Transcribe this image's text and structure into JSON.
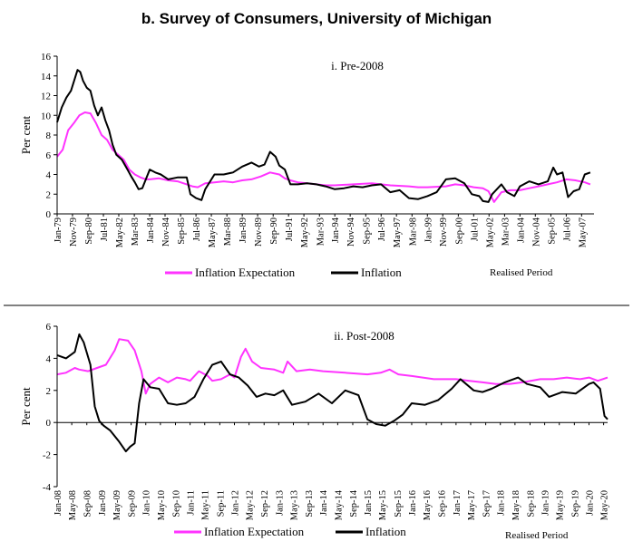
{
  "figure_title": "b.  Survey of Consumers, University of Michigan",
  "colors": {
    "expectation": "#ff33ff",
    "inflation": "#000000",
    "axis": "#000000"
  },
  "chart_data": [
    {
      "type": "line",
      "title": "i. Pre-2008",
      "xlabel": "Realised Period",
      "ylabel": "Per cent",
      "ylim": [
        0,
        16
      ],
      "yticks": [
        0,
        2,
        4,
        6,
        8,
        10,
        12,
        14,
        16
      ],
      "xlim": [
        1979.0,
        2008.0
      ],
      "x_ticks": [
        {
          "label": "Jan-79",
          "x": 1979.0
        },
        {
          "label": "Nov-79",
          "x": 1979.83
        },
        {
          "label": "Sep-80",
          "x": 1980.67
        },
        {
          "label": "Jul-81",
          "x": 1981.5
        },
        {
          "label": "May-82",
          "x": 1982.33
        },
        {
          "label": "Mar-83",
          "x": 1983.17
        },
        {
          "label": "Jan-84",
          "x": 1984.0
        },
        {
          "label": "Nov-84",
          "x": 1984.83
        },
        {
          "label": "Sep-85",
          "x": 1985.67
        },
        {
          "label": "Jul-86",
          "x": 1986.5
        },
        {
          "label": "May-87",
          "x": 1987.33
        },
        {
          "label": "Mar-88",
          "x": 1988.17
        },
        {
          "label": "Jan-89",
          "x": 1989.0
        },
        {
          "label": "Nov-89",
          "x": 1989.83
        },
        {
          "label": "Sep-90",
          "x": 1990.67
        },
        {
          "label": "Jul-91",
          "x": 1991.5
        },
        {
          "label": "May-92",
          "x": 1992.33
        },
        {
          "label": "Mar-93",
          "x": 1993.17
        },
        {
          "label": "Jan-94",
          "x": 1994.0
        },
        {
          "label": "Nov-94",
          "x": 1994.83
        },
        {
          "label": "Sep-95",
          "x": 1995.67
        },
        {
          "label": "Jul-96",
          "x": 1996.5
        },
        {
          "label": "May-97",
          "x": 1997.33
        },
        {
          "label": "Mar-98",
          "x": 1998.17
        },
        {
          "label": "Jan-99",
          "x": 1999.0
        },
        {
          "label": "Nov-99",
          "x": 1999.83
        },
        {
          "label": "Sep-00",
          "x": 2000.67
        },
        {
          "label": "Jul-01",
          "x": 2001.5
        },
        {
          "label": "May-02",
          "x": 2002.33
        },
        {
          "label": "Mar-03",
          "x": 2003.17
        },
        {
          "label": "Jan-04",
          "x": 2004.0
        },
        {
          "label": "Nov-04",
          "x": 2004.83
        },
        {
          "label": "Sep-05",
          "x": 2005.67
        },
        {
          "label": "Jul-06",
          "x": 2006.5
        },
        {
          "label": "May-07",
          "x": 2007.33
        }
      ],
      "series": [
        {
          "name": "Inflation Expectation",
          "color": "#ff33ff",
          "x": [
            1979.0,
            1979.3,
            1979.6,
            1979.9,
            1980.2,
            1980.5,
            1980.8,
            1981.1,
            1981.4,
            1981.7,
            1982.0,
            1982.3,
            1982.6,
            1982.9,
            1983.2,
            1983.5,
            1983.8,
            1984.0,
            1984.5,
            1985.0,
            1985.5,
            1986.0,
            1986.3,
            1986.6,
            1987.0,
            1987.5,
            1988.0,
            1988.5,
            1989.0,
            1989.5,
            1990.0,
            1990.5,
            1991.0,
            1991.3,
            1991.6,
            1992.0,
            1992.5,
            1993.0,
            1993.5,
            1994.0,
            1995.0,
            1996.0,
            1997.0,
            1998.0,
            1998.5,
            1999.0,
            2000.0,
            2000.5,
            2001.0,
            2001.5,
            2002.0,
            2002.3,
            2002.6,
            2003.0,
            2003.5,
            2004.0,
            2004.5,
            2005.0,
            2005.5,
            2006.0,
            2006.5,
            2007.0,
            2007.5,
            2007.8
          ],
          "values": [
            5.8,
            6.5,
            8.5,
            9.2,
            10.0,
            10.3,
            10.2,
            9.2,
            8.0,
            7.5,
            6.5,
            6.0,
            5.5,
            4.5,
            4.0,
            3.7,
            3.5,
            3.5,
            3.6,
            3.4,
            3.3,
            3.0,
            2.8,
            2.7,
            3.1,
            3.2,
            3.3,
            3.2,
            3.4,
            3.5,
            3.8,
            4.2,
            4.0,
            3.6,
            3.4,
            3.2,
            3.1,
            3.0,
            2.9,
            2.9,
            3.0,
            3.1,
            2.9,
            2.8,
            2.7,
            2.7,
            2.8,
            3.0,
            2.9,
            2.7,
            2.6,
            2.3,
            1.2,
            2.2,
            2.4,
            2.4,
            2.6,
            2.8,
            3.0,
            3.2,
            3.5,
            3.4,
            3.2,
            3.0
          ]
        },
        {
          "name": "Inflation",
          "color": "#000000",
          "x": [
            1979.0,
            1979.25,
            1979.5,
            1979.75,
            1980.0,
            1980.1,
            1980.25,
            1980.4,
            1980.6,
            1980.8,
            1981.0,
            1981.2,
            1981.4,
            1981.6,
            1981.8,
            1982.0,
            1982.2,
            1982.5,
            1982.8,
            1983.0,
            1983.2,
            1983.4,
            1983.6,
            1984.0,
            1984.3,
            1984.6,
            1985.0,
            1985.5,
            1986.0,
            1986.2,
            1986.5,
            1986.8,
            1987.0,
            1987.5,
            1988.0,
            1988.5,
            1989.0,
            1989.5,
            1989.9,
            1990.2,
            1990.5,
            1990.8,
            1991.0,
            1991.3,
            1991.6,
            1992.0,
            1992.5,
            1993.0,
            1993.5,
            1994.0,
            1994.5,
            1995.0,
            1995.5,
            1996.0,
            1996.5,
            1997.0,
            1997.5,
            1998.0,
            1998.5,
            1999.0,
            1999.5,
            2000.0,
            2000.5,
            2001.0,
            2001.4,
            2001.8,
            2002.0,
            2002.3,
            2002.5,
            2003.0,
            2003.3,
            2003.7,
            2004.0,
            2004.5,
            2005.0,
            2005.5,
            2005.8,
            2006.0,
            2006.3,
            2006.6,
            2006.9,
            2007.2,
            2007.5,
            2007.8
          ],
          "values": [
            9.3,
            10.8,
            11.8,
            12.5,
            14.0,
            14.6,
            14.4,
            13.5,
            12.8,
            12.5,
            11.0,
            10.0,
            10.8,
            9.5,
            8.5,
            7.0,
            6.0,
            5.5,
            4.5,
            3.8,
            3.2,
            2.5,
            2.6,
            4.5,
            4.2,
            4.0,
            3.5,
            3.7,
            3.7,
            2.0,
            1.6,
            1.4,
            2.5,
            4.0,
            4.0,
            4.2,
            4.8,
            5.2,
            4.8,
            5.0,
            6.3,
            5.8,
            4.9,
            4.5,
            3.0,
            3.0,
            3.1,
            3.0,
            2.8,
            2.5,
            2.6,
            2.8,
            2.7,
            2.9,
            3.0,
            2.2,
            2.4,
            1.6,
            1.5,
            1.8,
            2.2,
            3.5,
            3.6,
            3.1,
            2.0,
            1.8,
            1.3,
            1.2,
            2.0,
            3.0,
            2.2,
            1.8,
            2.8,
            3.3,
            3.0,
            3.3,
            4.7,
            4.0,
            4.2,
            1.7,
            2.3,
            2.5,
            4.0,
            4.2
          ]
        }
      ],
      "legend": [
        "Inflation Expectation",
        "Inflation"
      ],
      "legend_position": "bottom"
    },
    {
      "type": "line",
      "title": "ii. Post-2008",
      "xlabel": "Realised Period",
      "ylabel": "Per cent",
      "ylim": [
        -4,
        6
      ],
      "yticks": [
        -4,
        -2,
        0,
        2,
        4,
        6
      ],
      "xlim": [
        2008.0,
        2020.42
      ],
      "x_ticks": [
        {
          "label": "Jan-08",
          "x": 2008.0
        },
        {
          "label": "May-08",
          "x": 2008.33
        },
        {
          "label": "Sep-08",
          "x": 2008.67
        },
        {
          "label": "Jan-09",
          "x": 2009.0
        },
        {
          "label": "May-09",
          "x": 2009.33
        },
        {
          "label": "Sep-09",
          "x": 2009.67
        },
        {
          "label": "Jan-10",
          "x": 2010.0
        },
        {
          "label": "May-10",
          "x": 2010.33
        },
        {
          "label": "Sep-10",
          "x": 2010.67
        },
        {
          "label": "Jan-11",
          "x": 2011.0
        },
        {
          "label": "May-11",
          "x": 2011.33
        },
        {
          "label": "Sep-11",
          "x": 2011.67
        },
        {
          "label": "Jan-12",
          "x": 2012.0
        },
        {
          "label": "May-12",
          "x": 2012.33
        },
        {
          "label": "Sep-12",
          "x": 2012.67
        },
        {
          "label": "Jan-13",
          "x": 2013.0
        },
        {
          "label": "May-13",
          "x": 2013.33
        },
        {
          "label": "Sep-13",
          "x": 2013.67
        },
        {
          "label": "Jan-14",
          "x": 2014.0
        },
        {
          "label": "May-14",
          "x": 2014.33
        },
        {
          "label": "Sep-14",
          "x": 2014.67
        },
        {
          "label": "Jan-15",
          "x": 2015.0
        },
        {
          "label": "May-15",
          "x": 2015.33
        },
        {
          "label": "Sep-15",
          "x": 2015.67
        },
        {
          "label": "Jan-16",
          "x": 2016.0
        },
        {
          "label": "May-16",
          "x": 2016.33
        },
        {
          "label": "Sep-16",
          "x": 2016.67
        },
        {
          "label": "Jan-17",
          "x": 2017.0
        },
        {
          "label": "May-17",
          "x": 2017.33
        },
        {
          "label": "Sep-17",
          "x": 2017.67
        },
        {
          "label": "Jan-18",
          "x": 2018.0
        },
        {
          "label": "May-18",
          "x": 2018.33
        },
        {
          "label": "Sep-18",
          "x": 2018.67
        },
        {
          "label": "Jan-19",
          "x": 2019.0
        },
        {
          "label": "May-19",
          "x": 2019.33
        },
        {
          "label": "Sep-19",
          "x": 2019.67
        },
        {
          "label": "Jan-20",
          "x": 2020.0
        },
        {
          "label": "May-20",
          "x": 2020.33
        }
      ],
      "series": [
        {
          "name": "Inflation Expectation",
          "color": "#ff33ff",
          "x": [
            2008.0,
            2008.2,
            2008.4,
            2008.5,
            2008.7,
            2008.9,
            2009.1,
            2009.3,
            2009.4,
            2009.6,
            2009.75,
            2009.9,
            2010.0,
            2010.1,
            2010.3,
            2010.5,
            2010.7,
            2010.9,
            2011.0,
            2011.2,
            2011.4,
            2011.5,
            2011.7,
            2011.9,
            2012.0,
            2012.15,
            2012.25,
            2012.4,
            2012.6,
            2012.9,
            2013.1,
            2013.2,
            2013.4,
            2013.7,
            2014.0,
            2014.5,
            2015.0,
            2015.3,
            2015.5,
            2015.7,
            2016.0,
            2016.5,
            2017.0,
            2017.3,
            2017.6,
            2017.9,
            2018.2,
            2018.5,
            2018.9,
            2019.2,
            2019.5,
            2019.8,
            2020.0,
            2020.2,
            2020.42
          ],
          "values": [
            3.0,
            3.1,
            3.4,
            3.3,
            3.2,
            3.4,
            3.6,
            4.5,
            5.2,
            5.1,
            4.5,
            3.2,
            1.8,
            2.4,
            2.8,
            2.5,
            2.8,
            2.7,
            2.6,
            3.2,
            2.9,
            2.6,
            2.7,
            3.0,
            2.8,
            4.1,
            4.6,
            3.8,
            3.4,
            3.3,
            3.1,
            3.8,
            3.2,
            3.3,
            3.2,
            3.1,
            3.0,
            3.1,
            3.3,
            3.0,
            2.9,
            2.7,
            2.7,
            2.6,
            2.5,
            2.4,
            2.4,
            2.5,
            2.7,
            2.7,
            2.8,
            2.7,
            2.8,
            2.6,
            2.8
          ]
        },
        {
          "name": "Inflation",
          "color": "#000000",
          "x": [
            2008.0,
            2008.2,
            2008.4,
            2008.5,
            2008.6,
            2008.75,
            2008.85,
            2008.95,
            2009.05,
            2009.2,
            2009.4,
            2009.55,
            2009.65,
            2009.75,
            2009.85,
            2009.95,
            2010.1,
            2010.3,
            2010.5,
            2010.7,
            2010.9,
            2011.1,
            2011.3,
            2011.5,
            2011.7,
            2011.9,
            2012.1,
            2012.3,
            2012.5,
            2012.7,
            2012.9,
            2013.1,
            2013.3,
            2013.6,
            2013.9,
            2014.2,
            2014.5,
            2014.8,
            2015.0,
            2015.2,
            2015.4,
            2015.6,
            2015.8,
            2016.0,
            2016.3,
            2016.6,
            2016.9,
            2017.1,
            2017.4,
            2017.6,
            2017.8,
            2018.1,
            2018.4,
            2018.6,
            2018.9,
            2019.1,
            2019.4,
            2019.7,
            2020.0,
            2020.1,
            2020.25,
            2020.35,
            2020.42
          ],
          "values": [
            4.2,
            4.0,
            4.4,
            5.5,
            5.0,
            3.6,
            1.0,
            0.1,
            -0.2,
            -0.5,
            -1.2,
            -1.8,
            -1.5,
            -1.3,
            1.2,
            2.7,
            2.2,
            2.1,
            1.2,
            1.1,
            1.2,
            1.6,
            2.7,
            3.6,
            3.8,
            3.0,
            2.8,
            2.3,
            1.6,
            1.8,
            1.7,
            2.0,
            1.1,
            1.3,
            1.8,
            1.2,
            2.0,
            1.7,
            0.2,
            -0.1,
            -0.2,
            0.1,
            0.5,
            1.2,
            1.1,
            1.4,
            2.1,
            2.7,
            2.0,
            1.9,
            2.1,
            2.5,
            2.8,
            2.4,
            2.2,
            1.6,
            1.9,
            1.8,
            2.4,
            2.5,
            2.1,
            0.4,
            0.2
          ]
        }
      ],
      "legend": [
        "Inflation Expectation",
        "Inflation"
      ],
      "legend_position": "bottom"
    }
  ]
}
